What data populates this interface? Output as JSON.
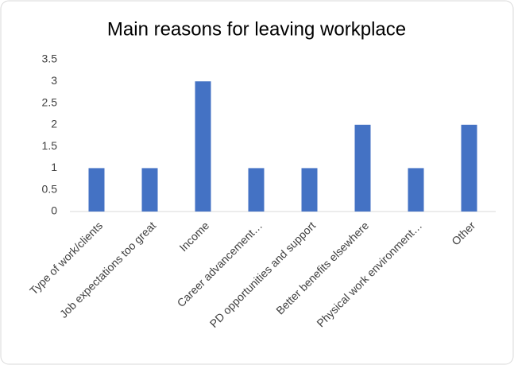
{
  "chart_data": {
    "type": "bar",
    "title": "Main reasons for leaving workplace",
    "categories": [
      "Type of work/clients",
      "Job expectations too great",
      "Income",
      "Career advancement…",
      "PD opportunities and support",
      "Better benefits elsewhere",
      "Physical work environment…",
      "Other"
    ],
    "values": [
      1,
      1,
      3,
      1,
      1,
      2,
      1,
      2
    ],
    "color": "#4472c4",
    "ylim": [
      0,
      3.5
    ],
    "yticks": [
      0,
      0.5,
      1,
      1.5,
      2,
      2.5,
      3,
      3.5
    ],
    "grid": false
  }
}
